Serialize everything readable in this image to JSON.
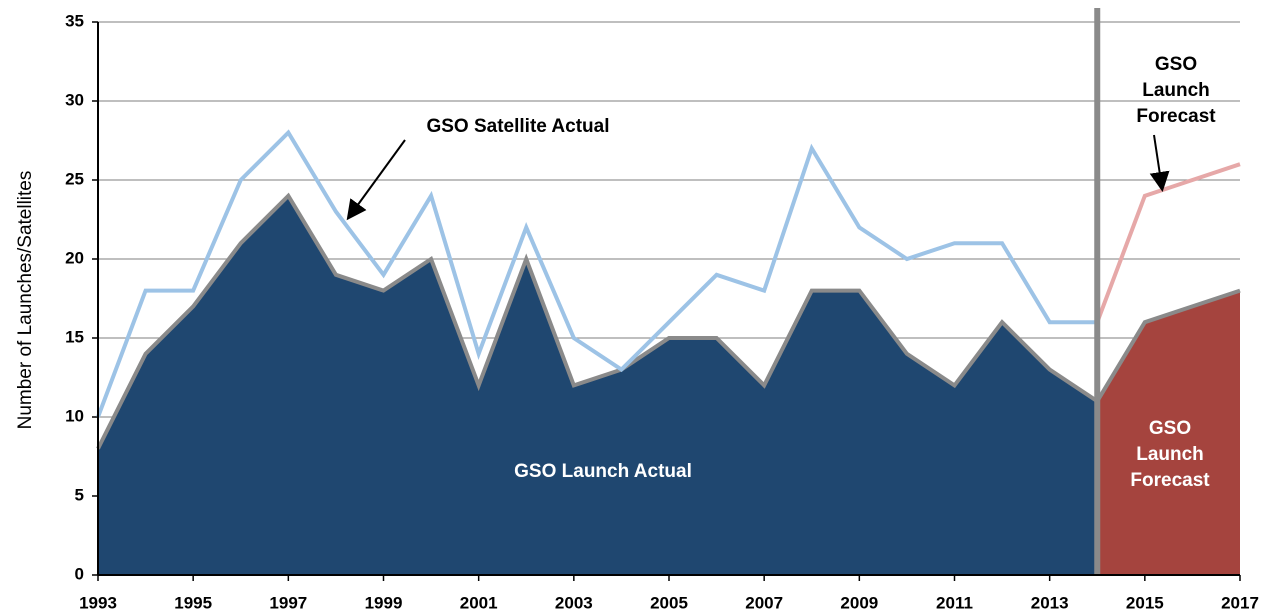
{
  "chart_data": {
    "type": "area",
    "y_label": "Number of Launches/Satellites",
    "x": [
      1993,
      1994,
      1995,
      1996,
      1997,
      1998,
      1999,
      2000,
      2001,
      2002,
      2003,
      2004,
      2005,
      2006,
      2007,
      2008,
      2009,
      2010,
      2011,
      2012,
      2013,
      2014,
      2015,
      2016,
      2017
    ],
    "series": [
      {
        "type": "area",
        "color": "#1f4770",
        "values": [
          8,
          14,
          17,
          21,
          24,
          19,
          18,
          20,
          12,
          20,
          12,
          13,
          15,
          15,
          12,
          18,
          18,
          14,
          12,
          16,
          13,
          11,
          null,
          null,
          null
        ]
      },
      {
        "type": "area",
        "color": "#a5443e",
        "values": [
          null,
          null,
          null,
          null,
          null,
          null,
          null,
          null,
          null,
          null,
          null,
          null,
          null,
          null,
          null,
          null,
          null,
          null,
          null,
          null,
          null,
          11,
          16,
          17,
          18
        ]
      },
      {
        "type": "line",
        "color": "#9dc3e6",
        "values": [
          10,
          18,
          18,
          25,
          28,
          23,
          19,
          24,
          14,
          22,
          15,
          13,
          16,
          19,
          18,
          27,
          22,
          20,
          21,
          21,
          16,
          16,
          null,
          null,
          null
        ]
      },
      {
        "type": "line",
        "color": "#e6a8a8",
        "values": [
          null,
          null,
          null,
          null,
          null,
          null,
          null,
          null,
          null,
          null,
          null,
          null,
          null,
          null,
          null,
          null,
          null,
          null,
          null,
          null,
          null,
          16,
          24,
          25,
          26
        ]
      }
    ],
    "divider_x": 2014,
    "xlim": [
      1993,
      2017
    ],
    "xticks": [
      1993,
      1995,
      1997,
      1999,
      2001,
      2003,
      2005,
      2007,
      2009,
      2011,
      2013,
      2015,
      2017
    ],
    "ylim": [
      0,
      35
    ],
    "yticks": [
      0,
      5,
      10,
      15,
      20,
      25,
      30,
      35
    ],
    "grid": true,
    "annotations": [
      {
        "lines": [
          "GSO Satellite Actual"
        ]
      },
      {
        "lines": [
          "GSO Launch",
          "Actual"
        ]
      },
      {
        "lines": [
          "GSO",
          "Launch",
          "Forecast"
        ]
      },
      {
        "lines": [
          "GSO",
          "Launch",
          "Forecast"
        ]
      }
    ]
  }
}
